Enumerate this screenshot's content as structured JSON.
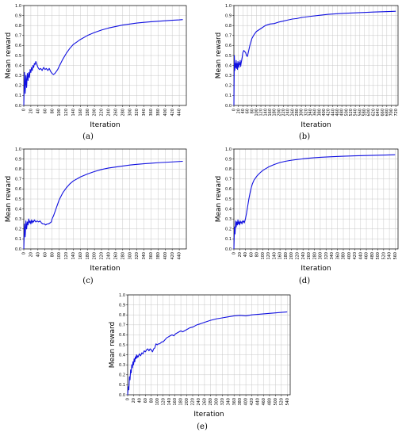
{
  "chart_data": [
    {
      "type": "line",
      "caption": "(a)",
      "xlabel": "Iteration",
      "ylabel": "Mean reward",
      "xlim": [
        0,
        460
      ],
      "ylim": [
        0,
        1.0
      ],
      "xticks": [
        "0",
        "20",
        "40",
        "60",
        "80",
        "100",
        "120",
        "140",
        "160",
        "180",
        "200",
        "220",
        "240",
        "260",
        "280",
        "300",
        "320",
        "340",
        "360",
        "380",
        "400",
        "420",
        "440"
      ],
      "yticks": [
        "0.0",
        "0.1",
        "0.2",
        "0.3",
        "0.4",
        "0.5",
        "0.6",
        "0.7",
        "0.8",
        "0.9",
        "1.0"
      ],
      "grid": true,
      "series": [
        {
          "color": "#1010e0",
          "x": [
            0,
            2,
            4,
            6,
            8,
            10,
            12,
            14,
            16,
            18,
            20,
            22,
            24,
            26,
            28,
            30,
            32,
            34,
            36,
            38,
            40,
            44,
            48,
            52,
            56,
            60,
            64,
            68,
            72,
            76,
            80,
            84,
            88,
            92,
            96,
            100,
            110,
            120,
            130,
            140,
            160,
            180,
            200,
            220,
            240,
            260,
            280,
            300,
            320,
            340,
            360,
            380,
            400,
            420,
            440,
            450
          ],
          "y": [
            0.0,
            0.33,
            0.12,
            0.3,
            0.18,
            0.32,
            0.25,
            0.33,
            0.28,
            0.36,
            0.33,
            0.38,
            0.35,
            0.4,
            0.38,
            0.42,
            0.41,
            0.44,
            0.42,
            0.4,
            0.38,
            0.36,
            0.37,
            0.35,
            0.38,
            0.36,
            0.37,
            0.35,
            0.37,
            0.34,
            0.32,
            0.31,
            0.32,
            0.34,
            0.36,
            0.39,
            0.46,
            0.52,
            0.57,
            0.61,
            0.66,
            0.7,
            0.73,
            0.755,
            0.775,
            0.79,
            0.805,
            0.815,
            0.825,
            0.832,
            0.838,
            0.843,
            0.848,
            0.853,
            0.857,
            0.86
          ]
        }
      ]
    },
    {
      "type": "line",
      "caption": "(b)",
      "xlabel": "Iteration",
      "ylabel": "Mean reward",
      "xlim": [
        0,
        730
      ],
      "ylim": [
        0,
        1.0
      ],
      "xticks": [
        "0",
        "20",
        "40",
        "60",
        "80",
        "100",
        "120",
        "140",
        "160",
        "180",
        "200",
        "220",
        "240",
        "260",
        "280",
        "300",
        "320",
        "340",
        "360",
        "380",
        "400",
        "420",
        "440",
        "460",
        "480",
        "500",
        "520",
        "540",
        "560",
        "580",
        "600",
        "620",
        "640",
        "660",
        "680",
        "700",
        "720"
      ],
      "yticks": [
        "0.0",
        "0.1",
        "0.2",
        "0.3",
        "0.4",
        "0.5",
        "0.6",
        "0.7",
        "0.8",
        "0.9",
        "1.0"
      ],
      "grid": true,
      "series": [
        {
          "color": "#1010e0",
          "x": [
            0,
            2,
            4,
            6,
            8,
            10,
            12,
            14,
            16,
            18,
            20,
            22,
            24,
            26,
            28,
            30,
            32,
            36,
            40,
            44,
            48,
            52,
            56,
            60,
            64,
            68,
            72,
            76,
            80,
            90,
            100,
            120,
            140,
            160,
            180,
            200,
            220,
            240,
            260,
            280,
            300,
            340,
            380,
            420,
            460,
            500,
            540,
            580,
            620,
            660,
            700,
            720
          ],
          "y": [
            0.0,
            0.5,
            0.35,
            0.42,
            0.38,
            0.45,
            0.37,
            0.42,
            0.36,
            0.44,
            0.4,
            0.38,
            0.43,
            0.41,
            0.45,
            0.39,
            0.42,
            0.47,
            0.53,
            0.55,
            0.54,
            0.53,
            0.5,
            0.49,
            0.53,
            0.57,
            0.61,
            0.64,
            0.67,
            0.71,
            0.74,
            0.77,
            0.8,
            0.815,
            0.82,
            0.835,
            0.845,
            0.855,
            0.865,
            0.87,
            0.88,
            0.892,
            0.902,
            0.912,
            0.918,
            0.923,
            0.927,
            0.931,
            0.935,
            0.938,
            0.941,
            0.943
          ]
        }
      ]
    },
    {
      "type": "line",
      "caption": "(c)",
      "xlabel": "Iteration",
      "ylabel": "Mean reward",
      "xlim": [
        0,
        460
      ],
      "ylim": [
        0,
        1.0
      ],
      "xticks": [
        "0",
        "20",
        "40",
        "60",
        "80",
        "100",
        "120",
        "140",
        "160",
        "180",
        "200",
        "220",
        "240",
        "260",
        "280",
        "300",
        "320",
        "340",
        "360",
        "380",
        "400",
        "420",
        "440"
      ],
      "yticks": [
        "0.0",
        "0.1",
        "0.2",
        "0.3",
        "0.4",
        "0.5",
        "0.6",
        "0.7",
        "0.8",
        "0.9",
        "1.0"
      ],
      "grid": true,
      "series": [
        {
          "color": "#1010e0",
          "x": [
            0,
            2,
            4,
            6,
            8,
            10,
            12,
            14,
            16,
            18,
            20,
            22,
            24,
            26,
            28,
            30,
            34,
            38,
            42,
            46,
            50,
            54,
            58,
            62,
            66,
            70,
            74,
            78,
            80,
            84,
            88,
            92,
            96,
            100,
            110,
            120,
            130,
            140,
            160,
            180,
            200,
            220,
            240,
            260,
            280,
            300,
            320,
            340,
            360,
            380,
            400,
            420,
            440,
            450
          ],
          "y": [
            0.0,
            0.25,
            0.12,
            0.28,
            0.2,
            0.27,
            0.24,
            0.3,
            0.26,
            0.28,
            0.25,
            0.29,
            0.26,
            0.28,
            0.27,
            0.29,
            0.27,
            0.28,
            0.27,
            0.28,
            0.26,
            0.25,
            0.25,
            0.24,
            0.25,
            0.25,
            0.26,
            0.27,
            0.3,
            0.33,
            0.37,
            0.41,
            0.45,
            0.49,
            0.56,
            0.61,
            0.65,
            0.68,
            0.72,
            0.75,
            0.775,
            0.795,
            0.81,
            0.82,
            0.83,
            0.84,
            0.847,
            0.853,
            0.858,
            0.863,
            0.867,
            0.871,
            0.875,
            0.877
          ]
        }
      ]
    },
    {
      "type": "line",
      "caption": "(d)",
      "xlabel": "Iteration",
      "ylabel": "Mean reward",
      "xlim": [
        0,
        570
      ],
      "ylim": [
        0,
        1.0
      ],
      "xticks": [
        "0",
        "20",
        "40",
        "60",
        "80",
        "100",
        "120",
        "140",
        "160",
        "180",
        "200",
        "220",
        "240",
        "260",
        "280",
        "300",
        "320",
        "340",
        "360",
        "380",
        "400",
        "420",
        "440",
        "460",
        "480",
        "500",
        "520",
        "540",
        "560"
      ],
      "yticks": [
        "0.0",
        "0.1",
        "0.2",
        "0.3",
        "0.4",
        "0.5",
        "0.6",
        "0.7",
        "0.8",
        "0.9",
        "1.0"
      ],
      "grid": true,
      "series": [
        {
          "color": "#1010e0",
          "x": [
            0,
            2,
            4,
            6,
            8,
            10,
            12,
            14,
            16,
            18,
            20,
            22,
            24,
            26,
            28,
            30,
            32,
            34,
            36,
            38,
            40,
            44,
            48,
            52,
            56,
            60,
            64,
            70,
            80,
            90,
            100,
            120,
            140,
            160,
            180,
            200,
            220,
            240,
            260,
            280,
            300,
            340,
            380,
            420,
            460,
            500,
            540,
            560
          ],
          "y": [
            0.0,
            0.22,
            0.15,
            0.28,
            0.22,
            0.27,
            0.24,
            0.29,
            0.25,
            0.27,
            0.24,
            0.28,
            0.26,
            0.27,
            0.25,
            0.28,
            0.27,
            0.28,
            0.26,
            0.28,
            0.3,
            0.36,
            0.43,
            0.5,
            0.56,
            0.61,
            0.65,
            0.69,
            0.73,
            0.76,
            0.785,
            0.82,
            0.845,
            0.865,
            0.878,
            0.888,
            0.895,
            0.902,
            0.908,
            0.913,
            0.917,
            0.923,
            0.928,
            0.932,
            0.935,
            0.938,
            0.941,
            0.943
          ]
        }
      ]
    },
    {
      "type": "line",
      "caption": "(e)",
      "xlabel": "Iteration",
      "ylabel": "Mean reward",
      "xlim": [
        0,
        550
      ],
      "ylim": [
        0,
        1.0
      ],
      "xticks": [
        "0",
        "20",
        "40",
        "60",
        "80",
        "100",
        "120",
        "140",
        "160",
        "180",
        "200",
        "220",
        "240",
        "260",
        "280",
        "300",
        "320",
        "340",
        "360",
        "380",
        "400",
        "420",
        "440",
        "460",
        "480",
        "500",
        "520",
        "540"
      ],
      "yticks": [
        "0.0",
        "0.1",
        "0.2",
        "0.3",
        "0.4",
        "0.5",
        "0.6",
        "0.7",
        "0.8",
        "0.9",
        "1.0"
      ],
      "grid": true,
      "series": [
        {
          "color": "#1010e0",
          "x": [
            0,
            2,
            4,
            6,
            8,
            10,
            12,
            14,
            16,
            18,
            20,
            22,
            24,
            26,
            28,
            30,
            32,
            34,
            36,
            38,
            40,
            44,
            48,
            52,
            56,
            60,
            64,
            68,
            72,
            76,
            80,
            84,
            88,
            92,
            96,
            100,
            104,
            108,
            112,
            116,
            120,
            126,
            132,
            138,
            144,
            150,
            156,
            162,
            168,
            174,
            180,
            186,
            192,
            198,
            204,
            210,
            216,
            222,
            228,
            234,
            240,
            250,
            260,
            270,
            280,
            300,
            320,
            340,
            360,
            380,
            400,
            420,
            440,
            460,
            480,
            500,
            520,
            540
          ],
          "y": [
            0.0,
            0.08,
            0.05,
            0.18,
            0.15,
            0.25,
            0.22,
            0.3,
            0.27,
            0.33,
            0.3,
            0.36,
            0.33,
            0.38,
            0.36,
            0.4,
            0.37,
            0.39,
            0.38,
            0.4,
            0.41,
            0.39,
            0.42,
            0.41,
            0.44,
            0.43,
            0.45,
            0.46,
            0.44,
            0.46,
            0.45,
            0.43,
            0.46,
            0.47,
            0.51,
            0.5,
            0.51,
            0.51,
            0.52,
            0.53,
            0.53,
            0.55,
            0.57,
            0.58,
            0.59,
            0.6,
            0.59,
            0.61,
            0.62,
            0.63,
            0.64,
            0.63,
            0.64,
            0.65,
            0.66,
            0.67,
            0.675,
            0.68,
            0.69,
            0.7,
            0.705,
            0.715,
            0.725,
            0.735,
            0.745,
            0.76,
            0.77,
            0.78,
            0.79,
            0.795,
            0.79,
            0.8,
            0.805,
            0.81,
            0.815,
            0.82,
            0.825,
            0.83
          ]
        }
      ]
    }
  ]
}
